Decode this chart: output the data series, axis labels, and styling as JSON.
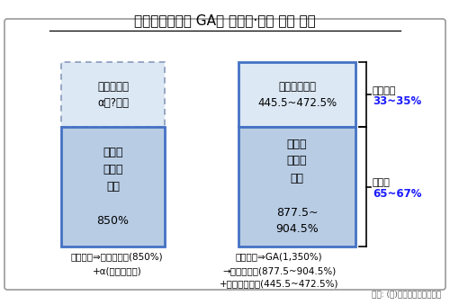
{
  "title": "손해보험회사와 GA의 수수료·수당 체계 비교",
  "bg_color": "#ffffff",
  "border_color": "#999999",
  "box_fill_light": "#b8cce4",
  "box_fill_lighter": "#dce8f4",
  "box_border_dark": "#4472c4",
  "box_border_dotted": "#8899bb",
  "left_top_label": "회사운영비\nα（?％）",
  "left_bot_label": "설계사\n수수료\n지급\n\n850%",
  "right_top_label": "대리점운영비\n445.5~472.5%",
  "right_bot_label": "설계사\n수수료\n지급\n\n877.5~\n904.5%",
  "right_brace_top_line1": "운영비등",
  "right_brace_top_line2": "33~35%",
  "right_brace_bot_line1": "설계사",
  "right_brace_bot_line2": "65~67%",
  "bottom_left1": "보험회사⇒전속설계사(850%)",
  "bottom_left2": "+α(회사운영비)",
  "bottom_right1": "보험회사⇒GA(1,350%)",
  "bottom_right2": "→소속설계사(877.5~904.5%)",
  "bottom_right3": "+대리점운영비(445.5~472.5%)",
  "source": "자료: (사)한국보험대리점협회"
}
